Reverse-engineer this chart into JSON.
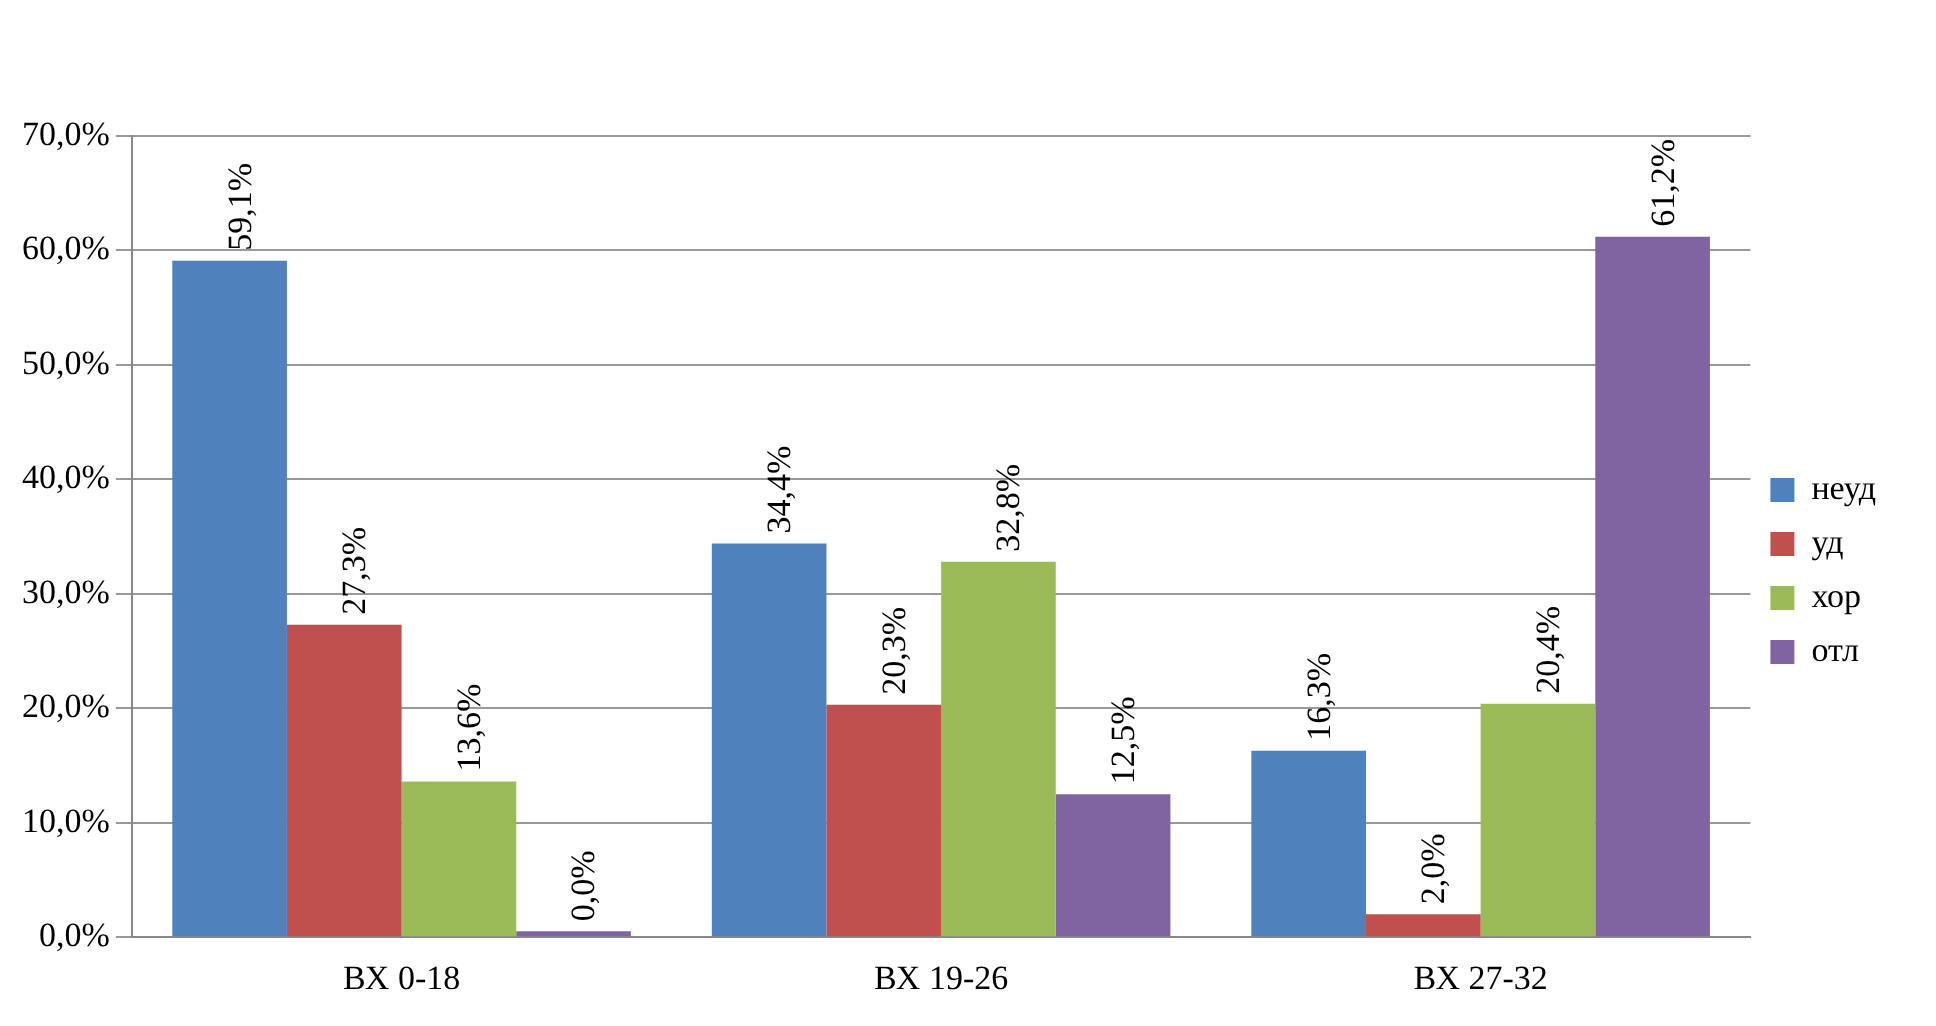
{
  "chart_data": {
    "type": "bar",
    "categories": [
      "ВХ 0-18",
      "ВХ 19-26",
      "ВХ 27-32"
    ],
    "series": [
      {
        "name": "неуд",
        "color": "#4f81bd",
        "values": [
          59.1,
          34.4,
          16.3
        ],
        "value_labels": [
          "59,1%",
          "34,4%",
          "16,3%"
        ]
      },
      {
        "name": "уд",
        "color": "#c0504d",
        "values": [
          27.3,
          20.3,
          2.0
        ],
        "value_labels": [
          "27,3%",
          "20,3%",
          "2,0%"
        ]
      },
      {
        "name": "хор",
        "color": "#9bbb59",
        "values": [
          13.6,
          32.8,
          20.4
        ],
        "value_labels": [
          "13,6%",
          "32,8%",
          "20,4%"
        ]
      },
      {
        "name": "отл",
        "color": "#8064a2",
        "values": [
          0.0,
          12.5,
          61.2
        ],
        "value_labels": [
          "0,0%",
          "12,5%",
          "61,2%"
        ]
      }
    ],
    "ylim": [
      0,
      70
    ],
    "yticks": [
      {
        "value": 0,
        "label": "0,0%"
      },
      {
        "value": 10,
        "label": "10,0%"
      },
      {
        "value": 20,
        "label": "20,0%"
      },
      {
        "value": 30,
        "label": "30,0%"
      },
      {
        "value": 40,
        "label": "40,0%"
      },
      {
        "value": 50,
        "label": "50,0%"
      },
      {
        "value": 60,
        "label": "60,0%"
      },
      {
        "value": 70,
        "label": "70,0%"
      }
    ],
    "grid": "y",
    "legend": "right"
  }
}
